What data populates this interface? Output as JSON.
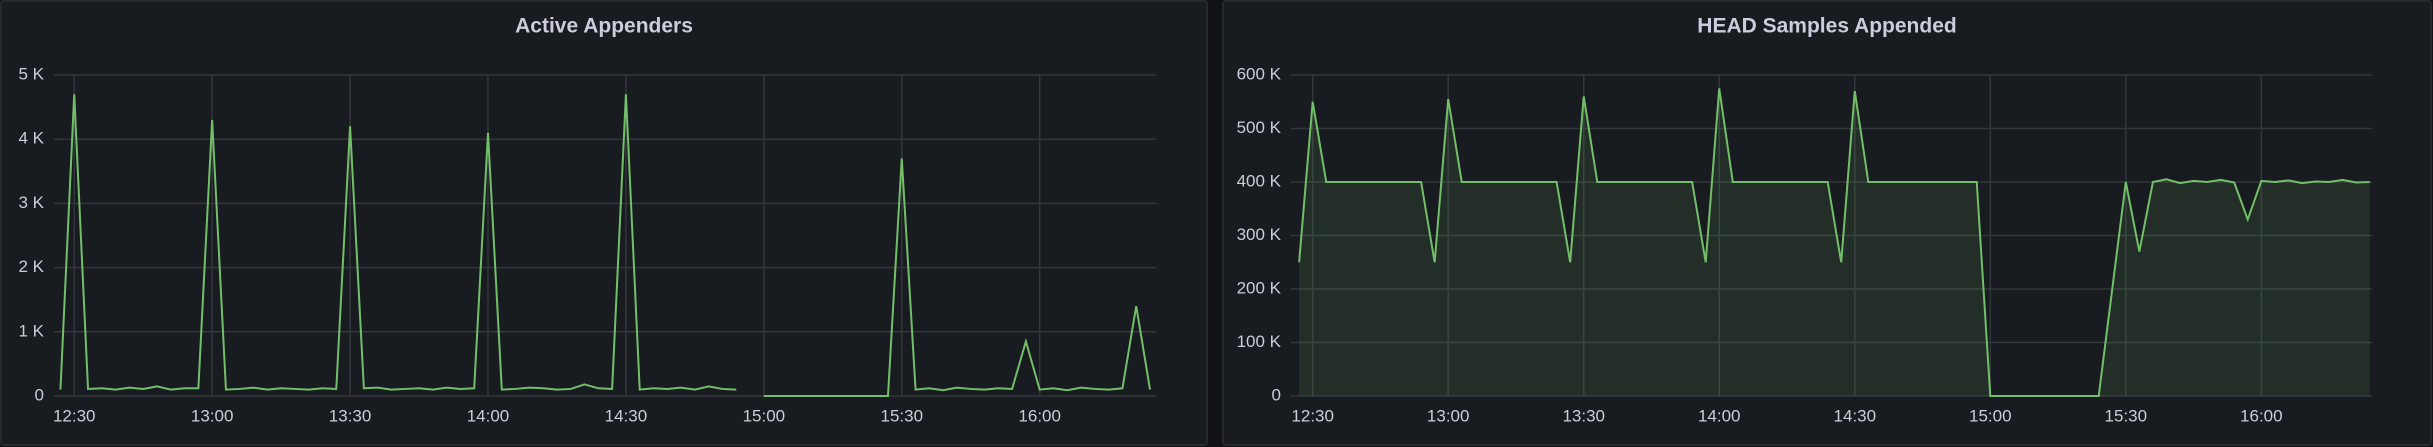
{
  "chart_data": [
    {
      "type": "line",
      "title": "Active Appenders",
      "color": "#73bf69",
      "fill": false,
      "grid": true,
      "xlim": [
        745.6,
        985.3
      ],
      "xticks": [
        {
          "value": 750,
          "label": "12:30"
        },
        {
          "value": 780,
          "label": "13:00"
        },
        {
          "value": 810,
          "label": "13:30"
        },
        {
          "value": 840,
          "label": "14:00"
        },
        {
          "value": 870,
          "label": "14:30"
        },
        {
          "value": 900,
          "label": "15:00"
        },
        {
          "value": 930,
          "label": "15:30"
        },
        {
          "value": 960,
          "label": "16:00"
        }
      ],
      "ylim": [
        0,
        5000
      ],
      "yticks": [
        0,
        {
          "value": 1000,
          "label": "1 K"
        },
        {
          "value": 2000,
          "label": "2 K"
        },
        {
          "value": 3000,
          "label": "3 K"
        },
        {
          "value": 4000,
          "label": "4 K"
        },
        {
          "value": 5000,
          "label": "5 K"
        }
      ],
      "x": [
        747,
        750,
        753,
        756,
        759,
        762,
        765,
        768,
        771,
        774,
        777,
        780,
        783,
        786,
        789,
        792,
        795,
        798,
        801,
        804,
        807,
        810,
        813,
        816,
        819,
        822,
        825,
        828,
        831,
        834,
        837,
        840,
        843,
        846,
        849,
        852,
        855,
        858,
        861,
        864,
        867,
        870,
        873,
        876,
        879,
        882,
        885,
        888,
        891,
        894,
        897,
        900,
        903,
        906,
        909,
        912,
        915,
        918,
        921,
        924,
        927,
        930,
        933,
        936,
        939,
        942,
        945,
        948,
        951,
        954,
        957,
        960,
        963,
        966,
        969,
        972,
        975,
        978,
        981,
        984
      ],
      "values": [
        100,
        4700,
        110,
        120,
        100,
        130,
        110,
        150,
        100,
        120,
        120,
        4300,
        100,
        110,
        130,
        100,
        120,
        110,
        100,
        120,
        110,
        4200,
        120,
        130,
        100,
        110,
        120,
        100,
        130,
        110,
        120,
        4100,
        100,
        110,
        130,
        120,
        100,
        110,
        180,
        120,
        110,
        4700,
        100,
        120,
        110,
        130,
        100,
        150,
        110,
        100,
        null,
        0,
        0,
        0,
        0,
        0,
        0,
        0,
        0,
        0,
        0,
        3700,
        100,
        120,
        90,
        130,
        110,
        100,
        120,
        110,
        850,
        100,
        120,
        90,
        130,
        110,
        100,
        120,
        1400,
        100
      ]
    },
    {
      "type": "line",
      "title": "HEAD Samples Appended",
      "color": "#73bf69",
      "fill": true,
      "grid": true,
      "xlim": [
        745.2,
        984.5
      ],
      "xticks": [
        {
          "value": 750,
          "label": "12:30"
        },
        {
          "value": 780,
          "label": "13:00"
        },
        {
          "value": 810,
          "label": "13:30"
        },
        {
          "value": 840,
          "label": "14:00"
        },
        {
          "value": 870,
          "label": "14:30"
        },
        {
          "value": 900,
          "label": "15:00"
        },
        {
          "value": 930,
          "label": "15:30"
        },
        {
          "value": 960,
          "label": "16:00"
        }
      ],
      "ylim": [
        0,
        600000
      ],
      "yticks": [
        0,
        {
          "value": 100000,
          "label": "100 K"
        },
        {
          "value": 200000,
          "label": "200 K"
        },
        {
          "value": 300000,
          "label": "300 K"
        },
        {
          "value": 400000,
          "label": "400 K"
        },
        {
          "value": 500000,
          "label": "500 K"
        },
        {
          "value": 600000,
          "label": "600 K"
        }
      ],
      "x": [
        747,
        750,
        753,
        756,
        759,
        762,
        765,
        768,
        771,
        774,
        777,
        780,
        783,
        786,
        789,
        792,
        795,
        798,
        801,
        804,
        807,
        810,
        813,
        816,
        819,
        822,
        825,
        828,
        831,
        834,
        837,
        840,
        843,
        846,
        849,
        852,
        855,
        858,
        861,
        864,
        867,
        870,
        873,
        876,
        879,
        882,
        885,
        888,
        891,
        894,
        897,
        900,
        903,
        906,
        909,
        912,
        915,
        918,
        921,
        924,
        927,
        930,
        933,
        936,
        939,
        942,
        945,
        948,
        951,
        954,
        957,
        960,
        963,
        966,
        969,
        972,
        975,
        978,
        981,
        984
      ],
      "values": [
        250000,
        550000,
        400000,
        400000,
        400000,
        400000,
        400000,
        400000,
        400000,
        400000,
        250000,
        555000,
        400000,
        400000,
        400000,
        400000,
        400000,
        400000,
        400000,
        400000,
        250000,
        560000,
        400000,
        400000,
        400000,
        400000,
        400000,
        400000,
        400000,
        400000,
        250000,
        575000,
        400000,
        400000,
        400000,
        400000,
        400000,
        400000,
        400000,
        400000,
        250000,
        570000,
        400000,
        400000,
        400000,
        400000,
        400000,
        400000,
        400000,
        400000,
        400000,
        0,
        0,
        0,
        0,
        0,
        0,
        0,
        0,
        0,
        200000,
        400000,
        270000,
        400000,
        405000,
        398000,
        402000,
        400000,
        404000,
        399000,
        330000,
        402000,
        400000,
        403000,
        398000,
        401000,
        400000,
        404000,
        399000,
        400000
      ]
    }
  ]
}
